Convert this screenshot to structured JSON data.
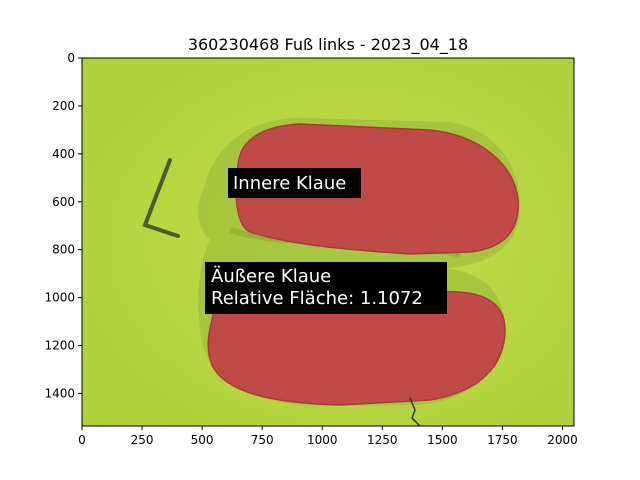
{
  "title": "360230468 Fuß links - 2023_04_18",
  "x_ticks": [
    "0",
    "250",
    "500",
    "750",
    "1000",
    "1250",
    "1500",
    "1750",
    "2000"
  ],
  "y_ticks": [
    "0",
    "200",
    "400",
    "600",
    "800",
    "1000",
    "1200",
    "1400"
  ],
  "x_tick_values": [
    0,
    250,
    500,
    750,
    1000,
    1250,
    1500,
    1750,
    2000
  ],
  "y_tick_values": [
    0,
    200,
    400,
    600,
    800,
    1000,
    1200,
    1400
  ],
  "xlim": [
    0,
    2048
  ],
  "ylim": [
    0,
    1536
  ],
  "annotations": {
    "inner": {
      "line1": "Innere Klaue"
    },
    "outer": {
      "line1": "Äußere Klaue",
      "line2": "Relative Fläche: 1.1072"
    }
  },
  "colors": {
    "background": "#b8d840",
    "claw_fill": "#c04848",
    "label_bg": "#000000",
    "label_text": "#ffffff"
  }
}
